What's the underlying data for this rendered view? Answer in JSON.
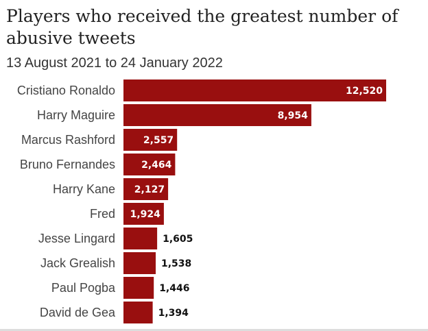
{
  "header": {
    "title": "Players who received the greatest number of abusive tweets",
    "subtitle": "13 August 2021 to 24 January 2022"
  },
  "colors": {
    "bar": "#990f0f",
    "label_inside": "#ffffff",
    "label_outside": "#111111",
    "category_text": "#444444"
  },
  "chart_data": {
    "type": "bar",
    "orientation": "horizontal",
    "title": "Players who received the greatest number of abusive tweets",
    "subtitle": "13 August 2021 to 24 January 2022",
    "xlabel": "",
    "ylabel": "",
    "xlim": [
      0,
      12520
    ],
    "grid": false,
    "legend": "none",
    "categories": [
      "Cristiano Ronaldo",
      "Harry Maguire",
      "Marcus Rashford",
      "Bruno Fernandes",
      "Harry Kane",
      "Fred",
      "Jesse Lingard",
      "Jack Grealish",
      "Paul Pogba",
      "David de Gea"
    ],
    "values": [
      12520,
      8954,
      2557,
      2464,
      2127,
      1924,
      1605,
      1538,
      1446,
      1394
    ],
    "value_labels": [
      "12,520",
      "8,954",
      "2,557",
      "2,464",
      "2,127",
      "1,924",
      "1,605",
      "1,538",
      "1,446",
      "1,394"
    ]
  }
}
